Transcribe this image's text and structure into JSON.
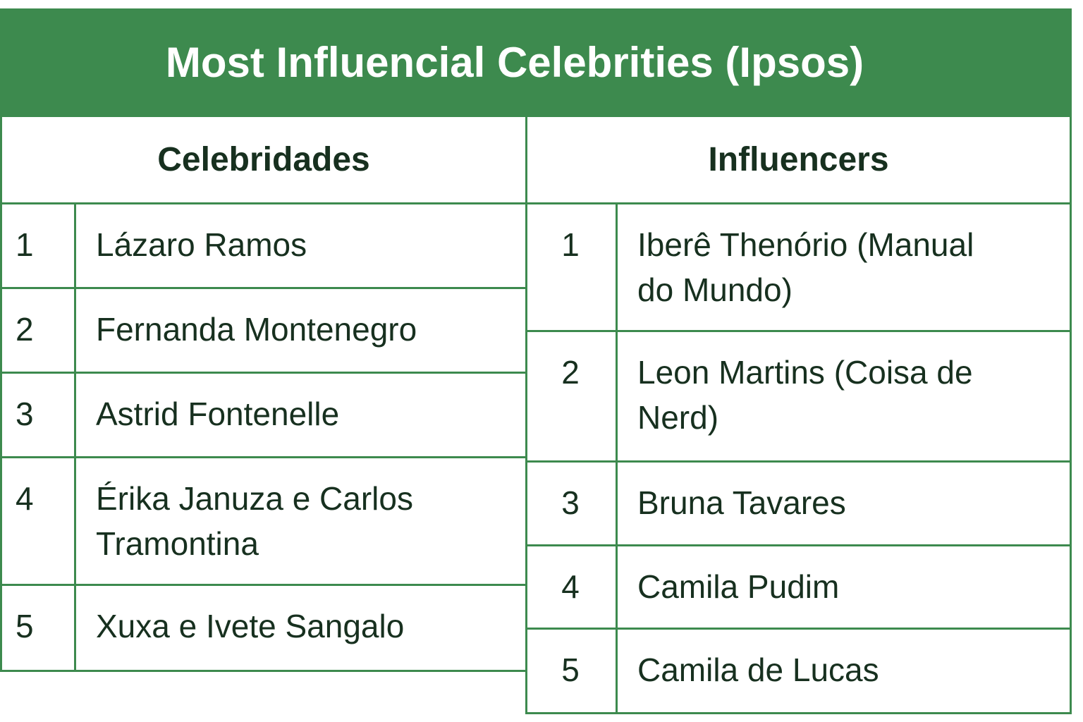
{
  "title": "Most Influencial Celebrities (Ipsos)",
  "tables": [
    {
      "header": "Celebridades",
      "rows": [
        {
          "rank": 1,
          "name": "Lázaro Ramos"
        },
        {
          "rank": 2,
          "name": "Fernanda Montenegro"
        },
        {
          "rank": 3,
          "name": "Astrid Fontenelle"
        },
        {
          "rank": 4,
          "name": "Érika Januza e Carlos Tramontina"
        },
        {
          "rank": 5,
          "name": "Xuxa e Ivete Sangalo"
        }
      ]
    },
    {
      "header": "Influencers",
      "rows": [
        {
          "rank": 1,
          "name": "Iberê Thenório (Manual do Mundo)"
        },
        {
          "rank": 2,
          "name": "Leon Martins (Coisa de Nerd)"
        },
        {
          "rank": 3,
          "name": "Bruna Tavares"
        },
        {
          "rank": 4,
          "name": "Camila Pudim"
        },
        {
          "rank": 5,
          "name": "Camila de Lucas"
        }
      ]
    }
  ]
}
